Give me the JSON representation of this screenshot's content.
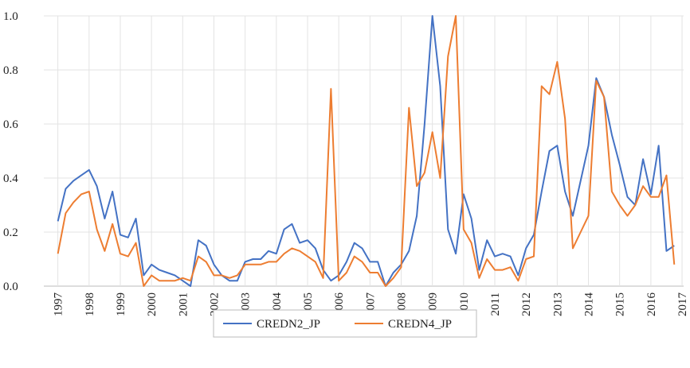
{
  "chart_data": {
    "type": "line",
    "x": [
      1997,
      1997.25,
      1997.5,
      1997.75,
      1998,
      1998.25,
      1998.5,
      1998.75,
      1999,
      1999.25,
      1999.5,
      1999.75,
      2000,
      2000.25,
      2000.5,
      2000.75,
      2001,
      2001.25,
      2001.5,
      2001.75,
      2002,
      2002.25,
      2002.5,
      2002.75,
      2003,
      2003.25,
      2003.5,
      2003.75,
      2004,
      2004.25,
      2004.5,
      2004.75,
      2005,
      2005.25,
      2005.5,
      2005.75,
      2006,
      2006.25,
      2006.5,
      2006.75,
      2007,
      2007.25,
      2007.5,
      2007.75,
      2008,
      2008.25,
      2008.5,
      2008.75,
      2009,
      2009.25,
      2009.5,
      2009.75,
      2010,
      2010.25,
      2010.5,
      2010.75,
      2011,
      2011.25,
      2011.5,
      2011.75,
      2012,
      2012.25,
      2012.5,
      2012.75,
      2013,
      2013.25,
      2013.5,
      2013.75,
      2014,
      2014.25,
      2014.5,
      2014.75,
      2015,
      2015.25,
      2015.5,
      2015.75,
      2016,
      2016.25,
      2016.5,
      2016.75
    ],
    "series": [
      {
        "name": "CREDN2_JP",
        "color": "#4472c4",
        "values": [
          0.24,
          0.36,
          0.39,
          0.41,
          0.43,
          0.37,
          0.25,
          0.35,
          0.19,
          0.18,
          0.25,
          0.04,
          0.08,
          0.06,
          0.05,
          0.04,
          0.02,
          0.0,
          0.17,
          0.15,
          0.08,
          0.04,
          0.02,
          0.02,
          0.09,
          0.1,
          0.1,
          0.13,
          0.12,
          0.21,
          0.23,
          0.16,
          0.17,
          0.14,
          0.06,
          0.02,
          0.04,
          0.09,
          0.16,
          0.14,
          0.09,
          0.09,
          0.0,
          0.05,
          0.08,
          0.13,
          0.26,
          0.6,
          1.0,
          0.74,
          0.21,
          0.12,
          0.34,
          0.25,
          0.06,
          0.17,
          0.11,
          0.12,
          0.11,
          0.04,
          0.14,
          0.19,
          0.35,
          0.5,
          0.52,
          0.35,
          0.26,
          0.39,
          0.52,
          0.77,
          0.7,
          0.56,
          0.45,
          0.33,
          0.3,
          0.47,
          0.34,
          0.52,
          0.13,
          0.15
        ]
      },
      {
        "name": "CREDN4_JP",
        "color": "#ed7d31",
        "values": [
          0.12,
          0.27,
          0.31,
          0.34,
          0.35,
          0.21,
          0.13,
          0.23,
          0.12,
          0.11,
          0.16,
          0.0,
          0.04,
          0.02,
          0.02,
          0.02,
          0.03,
          0.02,
          0.11,
          0.09,
          0.04,
          0.04,
          0.03,
          0.04,
          0.08,
          0.08,
          0.08,
          0.09,
          0.09,
          0.12,
          0.14,
          0.13,
          0.11,
          0.09,
          0.03,
          0.73,
          0.02,
          0.05,
          0.11,
          0.09,
          0.05,
          0.05,
          0.0,
          0.03,
          0.07,
          0.66,
          0.37,
          0.42,
          0.57,
          0.4,
          0.85,
          1.0,
          0.21,
          0.16,
          0.03,
          0.1,
          0.06,
          0.06,
          0.07,
          0.02,
          0.1,
          0.11,
          0.74,
          0.71,
          0.83,
          0.62,
          0.14,
          0.2,
          0.26,
          0.76,
          0.7,
          0.35,
          0.3,
          0.26,
          0.3,
          0.37,
          0.33,
          0.33,
          0.41,
          0.08
        ]
      }
    ],
    "xlim": [
      1996.55,
      2017.05
    ],
    "xticks": [
      1997,
      1998,
      1999,
      2000,
      2001,
      2002,
      2003,
      2004,
      2005,
      2006,
      2007,
      2008,
      2009,
      2010,
      2011,
      2012,
      2013,
      2014,
      2015,
      2016,
      2017
    ],
    "ylim": [
      0,
      1
    ],
    "yticks": [
      {
        "value": 0,
        "label": "0.0"
      },
      0.2,
      0.4,
      0.6,
      0.8,
      {
        "value": 1,
        "label": "1.0"
      }
    ],
    "grid": true,
    "legend": "bottom"
  }
}
